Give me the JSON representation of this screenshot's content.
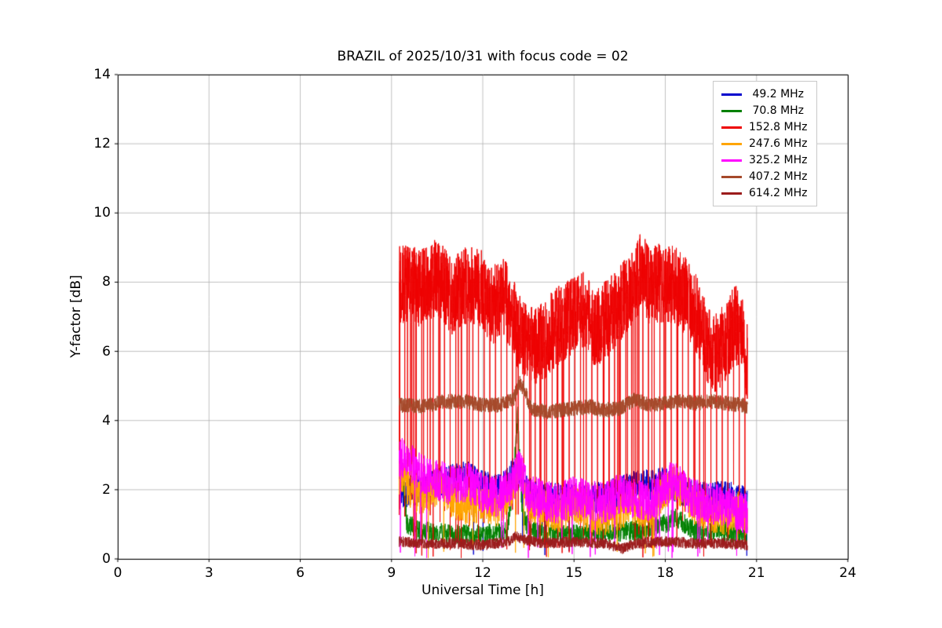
{
  "chart_data": {
    "type": "line",
    "title": "BRAZIL of 2025/10/31 with focus code = 02",
    "xlabel": "Universal Time [h]",
    "ylabel": "Y-factor [dB]",
    "xlim": [
      0,
      24
    ],
    "ylim": [
      0,
      14
    ],
    "xticks": [
      0,
      3,
      6,
      9,
      12,
      15,
      18,
      21,
      24
    ],
    "xtick_labels": [
      "0",
      "3",
      "6",
      "9",
      "12",
      "15",
      "18",
      "21",
      "24"
    ],
    "yticks": [
      0,
      2,
      4,
      6,
      8,
      10,
      12,
      14
    ],
    "ytick_labels": [
      "0",
      "2",
      "4",
      "6",
      "8",
      "10",
      "12",
      "14"
    ],
    "grid": true,
    "grid_color": "#b0b0b0",
    "axis_color": "#000000",
    "background": "#ffffff",
    "legend_position": "upper right",
    "data_x_range": [
      9.25,
      20.7
    ],
    "series": [
      {
        "label": " 49.2 MHz",
        "color": "#0000cd",
        "x_start": 9.25,
        "x_end": 20.7,
        "density": 150,
        "noise": 0.45,
        "dips": {
          "every": 0,
          "prob": 0.004,
          "max": 0.8
        },
        "anchors": [
          [
            9.25,
            1.9
          ],
          [
            10,
            2.0
          ],
          [
            10.5,
            2.2
          ],
          [
            11,
            2.3
          ],
          [
            11.5,
            2.4
          ],
          [
            12,
            2.1
          ],
          [
            12.6,
            2.0
          ],
          [
            13.1,
            2.6
          ],
          [
            13.5,
            1.9
          ],
          [
            14,
            1.8
          ],
          [
            15,
            1.7
          ],
          [
            16,
            1.8
          ],
          [
            17,
            2.1
          ],
          [
            18,
            2.2
          ],
          [
            18.5,
            2.0
          ],
          [
            19,
            1.8
          ],
          [
            20,
            1.8
          ],
          [
            20.7,
            1.7
          ]
        ]
      },
      {
        "label": " 70.8 MHz",
        "color": "#008000",
        "x_start": 9.25,
        "x_end": 20.7,
        "density": 150,
        "noise": 0.3,
        "dips": null,
        "anchors": [
          [
            9.25,
            1.4
          ],
          [
            9.35,
            2.6
          ],
          [
            9.5,
            1.0
          ],
          [
            10,
            0.8
          ],
          [
            11,
            0.7
          ],
          [
            12,
            0.7
          ],
          [
            12.8,
            0.8
          ],
          [
            13.0,
            2.2
          ],
          [
            13.15,
            4.2
          ],
          [
            13.3,
            1.2
          ],
          [
            13.6,
            0.8
          ],
          [
            14,
            0.7
          ],
          [
            15,
            0.7
          ],
          [
            16,
            0.8
          ],
          [
            17,
            0.8
          ],
          [
            18,
            1.0
          ],
          [
            18.3,
            1.2
          ],
          [
            19,
            0.8
          ],
          [
            20,
            0.8
          ],
          [
            20.7,
            0.7
          ]
        ]
      },
      {
        "label": "152.8 MHz",
        "color": "#ee0000",
        "x_start": 9.25,
        "x_end": 20.7,
        "density": 220,
        "noise": 1.15,
        "dips": {
          "every": 41,
          "prob": 0.015,
          "max": 2.2
        },
        "anchors": [
          [
            9.25,
            8.0
          ],
          [
            10,
            7.8
          ],
          [
            10.5,
            8.2
          ],
          [
            11,
            7.6
          ],
          [
            11.5,
            7.9
          ],
          [
            12,
            7.8
          ],
          [
            12.3,
            7.3
          ],
          [
            12.7,
            7.6
          ],
          [
            13,
            7.0
          ],
          [
            13.3,
            6.3
          ],
          [
            13.7,
            6.1
          ],
          [
            14,
            6.3
          ],
          [
            14.3,
            6.6
          ],
          [
            14.7,
            6.9
          ],
          [
            15,
            7.0
          ],
          [
            15.3,
            7.2
          ],
          [
            15.7,
            6.6
          ],
          [
            16,
            6.9
          ],
          [
            16.3,
            7.1
          ],
          [
            16.7,
            7.6
          ],
          [
            17,
            7.9
          ],
          [
            17.2,
            8.3
          ],
          [
            17.5,
            7.9
          ],
          [
            18,
            8.0
          ],
          [
            18.3,
            7.9
          ],
          [
            18.7,
            7.6
          ],
          [
            19,
            7.1
          ],
          [
            19.3,
            6.4
          ],
          [
            19.6,
            5.9
          ],
          [
            20,
            6.3
          ],
          [
            20.3,
            6.8
          ],
          [
            20.5,
            6.5
          ],
          [
            20.7,
            5.7
          ]
        ]
      },
      {
        "label": "247.6 MHz",
        "color": "#ffa500",
        "x_start": 9.25,
        "x_end": 20.7,
        "density": 160,
        "noise": 0.55,
        "dips": {
          "every": 0,
          "prob": 0.006,
          "max": 0.5
        },
        "anchors": [
          [
            9.25,
            2.4
          ],
          [
            9.6,
            2.0
          ],
          [
            10,
            1.8
          ],
          [
            10.5,
            2.1
          ],
          [
            11,
            1.7
          ],
          [
            11.5,
            1.5
          ],
          [
            12,
            1.6
          ],
          [
            12.5,
            1.4
          ],
          [
            12.9,
            2.0
          ],
          [
            13.2,
            2.7
          ],
          [
            13.5,
            1.6
          ],
          [
            14,
            1.5
          ],
          [
            14.5,
            1.3
          ],
          [
            15,
            1.6
          ],
          [
            15.5,
            1.3
          ],
          [
            16,
            1.2
          ],
          [
            16.5,
            1.4
          ],
          [
            17,
            1.5
          ],
          [
            17.5,
            1.4
          ],
          [
            18,
            2.0
          ],
          [
            18.3,
            2.2
          ],
          [
            18.7,
            1.8
          ],
          [
            19,
            1.5
          ],
          [
            19.5,
            1.3
          ],
          [
            20,
            1.2
          ],
          [
            20.4,
            1.4
          ],
          [
            20.7,
            1.2
          ]
        ]
      },
      {
        "label": "325.2 MHz",
        "color": "#ff00ff",
        "x_start": 9.25,
        "x_end": 20.7,
        "density": 170,
        "noise": 0.6,
        "dips": {
          "every": 0,
          "prob": 0.008,
          "max": 0.5
        },
        "anchors": [
          [
            9.25,
            3.0
          ],
          [
            9.5,
            2.8
          ],
          [
            10,
            2.5
          ],
          [
            10.5,
            2.3
          ],
          [
            11,
            2.1
          ],
          [
            11.5,
            2.2
          ],
          [
            12,
            1.9
          ],
          [
            12.5,
            1.8
          ],
          [
            13,
            2.2
          ],
          [
            13.2,
            2.6
          ],
          [
            13.5,
            1.9
          ],
          [
            14,
            1.7
          ],
          [
            14.5,
            1.6
          ],
          [
            15,
            1.8
          ],
          [
            15.5,
            1.7
          ],
          [
            16,
            1.6
          ],
          [
            16.5,
            1.9
          ],
          [
            17,
            1.7
          ],
          [
            17.5,
            1.7
          ],
          [
            18,
            2.1
          ],
          [
            18.3,
            2.3
          ],
          [
            18.7,
            1.9
          ],
          [
            19,
            1.7
          ],
          [
            19.5,
            1.6
          ],
          [
            20,
            1.5
          ],
          [
            20.3,
            1.4
          ],
          [
            20.7,
            1.3
          ]
        ]
      },
      {
        "label": "407.2 MHz",
        "color": "#a5492a",
        "x_start": 9.25,
        "x_end": 20.7,
        "density": 200,
        "noise": 0.22,
        "dips": null,
        "anchors": [
          [
            9.25,
            4.45
          ],
          [
            10,
            4.4
          ],
          [
            10.7,
            4.55
          ],
          [
            11.5,
            4.55
          ],
          [
            12,
            4.45
          ],
          [
            12.5,
            4.45
          ],
          [
            13,
            4.6
          ],
          [
            13.2,
            5.1
          ],
          [
            13.35,
            4.9
          ],
          [
            13.6,
            4.35
          ],
          [
            14,
            4.25
          ],
          [
            14.5,
            4.3
          ],
          [
            15,
            4.35
          ],
          [
            15.5,
            4.4
          ],
          [
            16,
            4.3
          ],
          [
            16.5,
            4.35
          ],
          [
            17,
            4.6
          ],
          [
            17.5,
            4.45
          ],
          [
            18,
            4.5
          ],
          [
            18.5,
            4.55
          ],
          [
            19,
            4.5
          ],
          [
            19.5,
            4.55
          ],
          [
            20,
            4.5
          ],
          [
            20.5,
            4.45
          ],
          [
            20.7,
            4.4
          ]
        ]
      },
      {
        "label": "614.2 MHz",
        "color": "#9b1c1c",
        "x_start": 9.25,
        "x_end": 20.7,
        "density": 180,
        "noise": 0.16,
        "dips": null,
        "anchors": [
          [
            9.25,
            0.5
          ],
          [
            10,
            0.45
          ],
          [
            11,
            0.45
          ],
          [
            12,
            0.4
          ],
          [
            12.8,
            0.5
          ],
          [
            13.1,
            0.65
          ],
          [
            13.4,
            0.55
          ],
          [
            14,
            0.45
          ],
          [
            15,
            0.5
          ],
          [
            16,
            0.45
          ],
          [
            16.6,
            0.3
          ],
          [
            17,
            0.45
          ],
          [
            18,
            0.5
          ],
          [
            19,
            0.45
          ],
          [
            20,
            0.45
          ],
          [
            20.7,
            0.4
          ]
        ]
      }
    ]
  }
}
